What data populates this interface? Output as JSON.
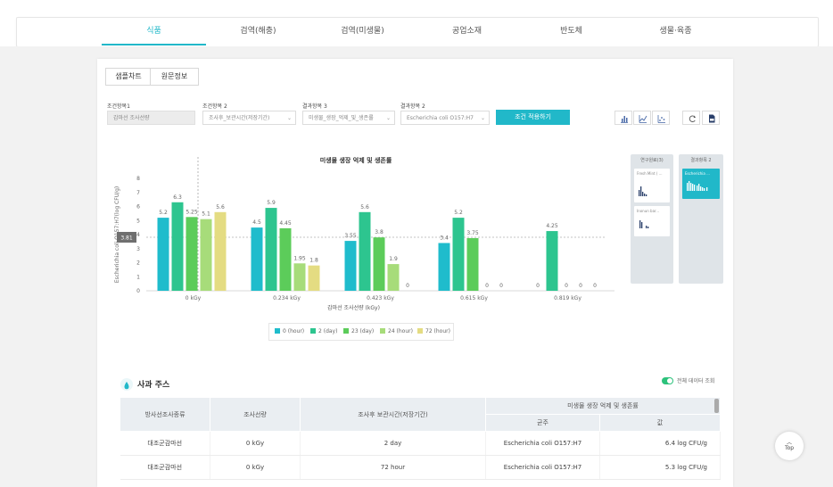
{
  "nav": {
    "tabs": [
      {
        "label": "식품",
        "active": true
      },
      {
        "label": "검역(해충)"
      },
      {
        "label": "검역(미생물)"
      },
      {
        "label": "공업소재"
      },
      {
        "label": "반도체"
      },
      {
        "label": "생물·육종"
      }
    ]
  },
  "view_toggle": {
    "chart_label": "샘플차트",
    "raw_label": "원문정보"
  },
  "filters": {
    "cond1": {
      "label": "조건항목1",
      "value": "감마선 조사선량"
    },
    "cond2": {
      "label": "조건항목 2",
      "value": "조사후_보관시간(저장기간)"
    },
    "result3": {
      "label": "결과항목 3",
      "value": "미생물_생장_억제_및_생존률"
    },
    "result2": {
      "label": "결과항목 2",
      "value": "Escherichia coli O157:H7"
    },
    "apply_label": "조건 적용하기"
  },
  "icons": [
    "bar-chart-icon",
    "line-chart-icon",
    "scatter-chart-icon",
    "refresh-icon",
    "pdf-icon"
  ],
  "side_panels": {
    "panel1": {
      "title": "연구원료(3)",
      "card1": "Fresh Mint ( ...",
      "card2": "Inonun bar..."
    },
    "panel2": {
      "title": "결과항목 2",
      "card1": "Escherichia ..."
    }
  },
  "chart_data": {
    "type": "bar",
    "title": "미생물 생장 억제 및 생존률",
    "xlabel": "감마선 조사선량 (kGy)",
    "ylabel": "Escherichia coli O157:H7(log CFU/g)",
    "ylim": [
      0,
      8
    ],
    "yticks": [
      "0",
      "1",
      "2",
      "3",
      "4",
      "5",
      "6",
      "7",
      "8"
    ],
    "categories": [
      "0 kGy",
      "0.234 kGy",
      "0.423 kGy",
      "0.615 kGy",
      "0.819 kGy"
    ],
    "hover_value": "3.81",
    "series": [
      {
        "name": "0 (hour)",
        "color": "#1fbccc",
        "values": [
          5.2,
          4.5,
          3.55,
          3.4,
          0
        ],
        "labels": [
          "5.2",
          "4.5",
          "3.55",
          "3.4",
          "0"
        ]
      },
      {
        "name": "2 (day)",
        "color": "#2dc58f",
        "values": [
          6.3,
          5.9,
          5.6,
          5.2,
          4.25
        ],
        "labels": [
          "6.3",
          "5.9",
          "5.6",
          "5.2",
          "4.25"
        ]
      },
      {
        "name": "23 (day)",
        "color": "#5ccc5a",
        "values": [
          5.25,
          4.45,
          3.8,
          3.75,
          0
        ],
        "labels": [
          "5.25",
          "4.45",
          "3.8",
          "3.75",
          "0"
        ]
      },
      {
        "name": "24 (hour)",
        "color": "#a7dc7a",
        "values": [
          5.1,
          1.95,
          1.9,
          0,
          0
        ],
        "labels": [
          "5.1",
          "1.95",
          "1.9",
          "0",
          "0"
        ]
      },
      {
        "name": "72 (hour)",
        "color": "#e4dc82",
        "values": [
          5.6,
          1.8,
          0,
          0,
          0
        ],
        "labels": [
          "5.6",
          "1.8",
          "0",
          "0",
          "0"
        ]
      }
    ]
  },
  "section": {
    "title": "사과 주스",
    "toggle_label": "전체 데이터 조회"
  },
  "table": {
    "headers": {
      "col1": "방사선조사종류",
      "col2": "조사선량",
      "col3": "조사후 보관시간(저장기간)",
      "group": "미생물 생장 억제 및 생존률",
      "sub1": "균주",
      "sub2": "값"
    },
    "rows": [
      {
        "c1": "대조군감마선",
        "c2": "0 kGy",
        "c3": "2 day",
        "c4": "Escherichia coli O157:H7",
        "c5": "6.4 log CFU/g"
      },
      {
        "c1": "대조군감마선",
        "c2": "0 kGy",
        "c3": "72 hour",
        "c4": "Escherichia coli O157:H7",
        "c5": "5.3 log CFU/g"
      }
    ]
  },
  "top_button": {
    "label": "Top"
  }
}
